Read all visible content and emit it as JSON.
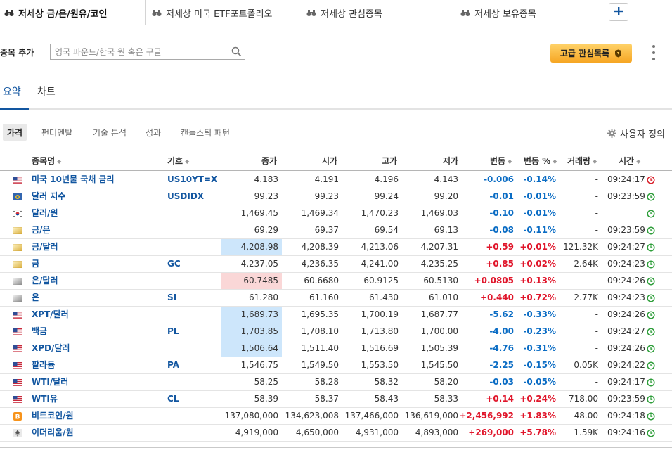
{
  "tabs": [
    {
      "label": "저세상 금/은/원유/코인",
      "active": true
    },
    {
      "label": "저세상 미국 ETF포트폴리오",
      "active": false
    },
    {
      "label": "저세상 관심종목",
      "active": false
    },
    {
      "label": "저세상 보유종목",
      "active": false
    }
  ],
  "add_row": {
    "label": "종목 추가",
    "search_placeholder": "영국 파운드/한국 원 혹은 구글",
    "premium_label": "고급 관심목록"
  },
  "views": [
    "요약",
    "차트"
  ],
  "subtabs": [
    "가격",
    "펀더멘탈",
    "기술 분석",
    "성과",
    "캔들스틱 패턴"
  ],
  "custom_label": "사용자 정의",
  "columns": {
    "name": "종목명",
    "symbol": "기호",
    "close": "종가",
    "open": "시가",
    "high": "고가",
    "low": "저가",
    "change": "변동",
    "pct": "변동 %",
    "volume": "거래량",
    "time": "시간"
  },
  "colors": {
    "accent": "#1256a0",
    "negative": "#0a6cc4",
    "positive": "#e0162b",
    "status_green": "#2e9e3a",
    "status_red": "#d9232d"
  },
  "rows": [
    {
      "flag": "us",
      "name": "미국 10년물 국채 금리",
      "symbol": "US10YT=X",
      "close": "4.183",
      "open": "4.191",
      "high": "4.196",
      "low": "4.143",
      "change": "-0.006",
      "pct": "-0.14%",
      "volume": "-",
      "time": "09:24:17",
      "status": "closed",
      "highlight": ""
    },
    {
      "flag": "dx",
      "name": "달러 지수",
      "symbol": "USDIDX",
      "close": "99.23",
      "open": "99.23",
      "high": "99.24",
      "low": "99.20",
      "change": "-0.01",
      "pct": "-0.01%",
      "volume": "-",
      "time": "09:23:59",
      "status": "open",
      "highlight": ""
    },
    {
      "flag": "kr",
      "name": "달러/원",
      "symbol": "",
      "close": "1,469.45",
      "open": "1,469.34",
      "high": "1,470.23",
      "low": "1,469.03",
      "change": "-0.10",
      "pct": "-0.01%",
      "volume": "-",
      "time": "",
      "status": "open",
      "highlight": ""
    },
    {
      "flag": "gold",
      "name": "금/은",
      "symbol": "",
      "close": "69.29",
      "open": "69.37",
      "high": "69.54",
      "low": "69.13",
      "change": "-0.08",
      "pct": "-0.11%",
      "volume": "-",
      "time": "09:23:59",
      "status": "open",
      "highlight": ""
    },
    {
      "flag": "gold",
      "name": "금/달러",
      "symbol": "",
      "close": "4,208.98",
      "open": "4,208.39",
      "high": "4,213.06",
      "low": "4,207.31",
      "change": "+0.59",
      "pct": "+0.01%",
      "volume": "121.32K",
      "time": "09:24:27",
      "status": "open",
      "highlight": "blue"
    },
    {
      "flag": "gold",
      "name": "금",
      "symbol": "GC",
      "close": "4,237.05",
      "open": "4,236.35",
      "high": "4,241.00",
      "low": "4,235.25",
      "change": "+0.85",
      "pct": "+0.02%",
      "volume": "2.64K",
      "time": "09:24:23",
      "status": "open",
      "highlight": ""
    },
    {
      "flag": "silver",
      "name": "은/달러",
      "symbol": "",
      "close": "60.7485",
      "open": "60.6680",
      "high": "60.9125",
      "low": "60.5130",
      "change": "+0.0805",
      "pct": "+0.13%",
      "volume": "-",
      "time": "09:24:26",
      "status": "open",
      "highlight": "red"
    },
    {
      "flag": "silver",
      "name": "은",
      "symbol": "SI",
      "close": "61.280",
      "open": "61.160",
      "high": "61.430",
      "low": "61.010",
      "change": "+0.440",
      "pct": "+0.72%",
      "volume": "2.77K",
      "time": "09:24:23",
      "status": "open",
      "highlight": ""
    },
    {
      "flag": "us",
      "name": "XPT/달러",
      "symbol": "",
      "close": "1,689.73",
      "open": "1,695.35",
      "high": "1,700.19",
      "low": "1,687.77",
      "change": "-5.62",
      "pct": "-0.33%",
      "volume": "-",
      "time": "09:24:26",
      "status": "open",
      "highlight": "blue"
    },
    {
      "flag": "us",
      "name": "백금",
      "symbol": "PL",
      "close": "1,703.85",
      "open": "1,708.10",
      "high": "1,713.80",
      "low": "1,700.00",
      "change": "-4.00",
      "pct": "-0.23%",
      "volume": "-",
      "time": "09:24:27",
      "status": "open",
      "highlight": "blue"
    },
    {
      "flag": "us",
      "name": "XPD/달러",
      "symbol": "",
      "close": "1,506.64",
      "open": "1,511.40",
      "high": "1,516.69",
      "low": "1,505.39",
      "change": "-4.76",
      "pct": "-0.31%",
      "volume": "-",
      "time": "09:24:26",
      "status": "open",
      "highlight": "blue"
    },
    {
      "flag": "us",
      "name": "팔라듐",
      "symbol": "PA",
      "close": "1,546.75",
      "open": "1,549.50",
      "high": "1,553.50",
      "low": "1,545.50",
      "change": "-2.25",
      "pct": "-0.15%",
      "volume": "0.05K",
      "time": "09:24:22",
      "status": "open",
      "highlight": ""
    },
    {
      "flag": "us",
      "name": "WTI/달러",
      "symbol": "",
      "close": "58.25",
      "open": "58.28",
      "high": "58.32",
      "low": "58.20",
      "change": "-0.03",
      "pct": "-0.05%",
      "volume": "-",
      "time": "09:24:17",
      "status": "open",
      "highlight": ""
    },
    {
      "flag": "us",
      "name": "WTI유",
      "symbol": "CL",
      "close": "58.39",
      "open": "58.37",
      "high": "58.43",
      "low": "58.33",
      "change": "+0.14",
      "pct": "+0.24%",
      "volume": "718.00",
      "time": "09:23:59",
      "status": "open",
      "highlight": ""
    },
    {
      "flag": "btc",
      "name": "비트코인/원",
      "symbol": "",
      "close": "137,080,000",
      "open": "134,623,008",
      "high": "137,466,000",
      "low": "136,619,000",
      "change": "+2,456,992",
      "pct": "+1.83%",
      "volume": "48.00",
      "time": "09:24:18",
      "status": "open",
      "highlight": ""
    },
    {
      "flag": "eth",
      "name": "이더리움/원",
      "symbol": "",
      "close": "4,919,000",
      "open": "4,650,000",
      "high": "4,931,000",
      "low": "4,893,000",
      "change": "+269,000",
      "pct": "+5.78%",
      "volume": "1.59K",
      "time": "09:24:16",
      "status": "open",
      "highlight": ""
    }
  ]
}
